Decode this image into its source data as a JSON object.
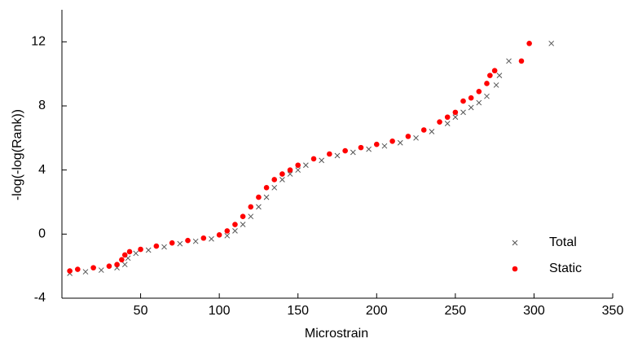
{
  "chart_data": {
    "type": "scatter",
    "x_label": "Microstrain",
    "y_label": "-log(-log(Rank))",
    "xlim": [
      0,
      350
    ],
    "ylim": [
      -4,
      14
    ],
    "xticks": [
      50,
      100,
      150,
      200,
      250,
      300,
      350
    ],
    "yticks": [
      -4,
      0,
      4,
      8,
      12
    ],
    "legend": "lower right",
    "series": [
      {
        "name": "Total",
        "color": "#555555",
        "marker": "x",
        "x": [
          5,
          15,
          25,
          35,
          40,
          42,
          47,
          55,
          65,
          75,
          85,
          95,
          105,
          110,
          115,
          120,
          125,
          130,
          135,
          140,
          145,
          150,
          155,
          165,
          175,
          185,
          195,
          205,
          215,
          225,
          235,
          245,
          250,
          255,
          260,
          265,
          270,
          276,
          278,
          284,
          311
        ],
        "values": [
          -2.45,
          -2.35,
          -2.25,
          -2.1,
          -1.9,
          -1.5,
          -1.2,
          -1.0,
          -0.8,
          -0.6,
          -0.45,
          -0.3,
          -0.1,
          0.2,
          0.6,
          1.1,
          1.7,
          2.3,
          2.9,
          3.4,
          3.75,
          4.0,
          4.3,
          4.6,
          4.9,
          5.1,
          5.3,
          5.5,
          5.7,
          6.0,
          6.4,
          6.9,
          7.3,
          7.6,
          7.9,
          8.2,
          8.6,
          9.3,
          9.9,
          10.8,
          11.9
        ]
      },
      {
        "name": "Static",
        "color": "#ff0000",
        "marker": "o",
        "x": [
          5,
          10,
          20,
          30,
          35,
          38,
          40,
          43,
          50,
          60,
          70,
          80,
          90,
          100,
          105,
          110,
          115,
          120,
          125,
          130,
          135,
          140,
          145,
          150,
          160,
          170,
          180,
          190,
          200,
          210,
          220,
          230,
          240,
          245,
          250,
          255,
          260,
          265,
          270,
          272,
          275,
          292,
          297
        ],
        "values": [
          -2.3,
          -2.2,
          -2.1,
          -2.0,
          -1.9,
          -1.6,
          -1.3,
          -1.1,
          -0.95,
          -0.75,
          -0.55,
          -0.4,
          -0.25,
          -0.05,
          0.2,
          0.6,
          1.1,
          1.7,
          2.3,
          2.9,
          3.4,
          3.75,
          4.0,
          4.3,
          4.7,
          5.0,
          5.2,
          5.4,
          5.6,
          5.8,
          6.1,
          6.5,
          7.0,
          7.3,
          7.6,
          8.3,
          8.5,
          8.9,
          9.4,
          9.9,
          10.2,
          10.8,
          11.9
        ]
      }
    ]
  }
}
